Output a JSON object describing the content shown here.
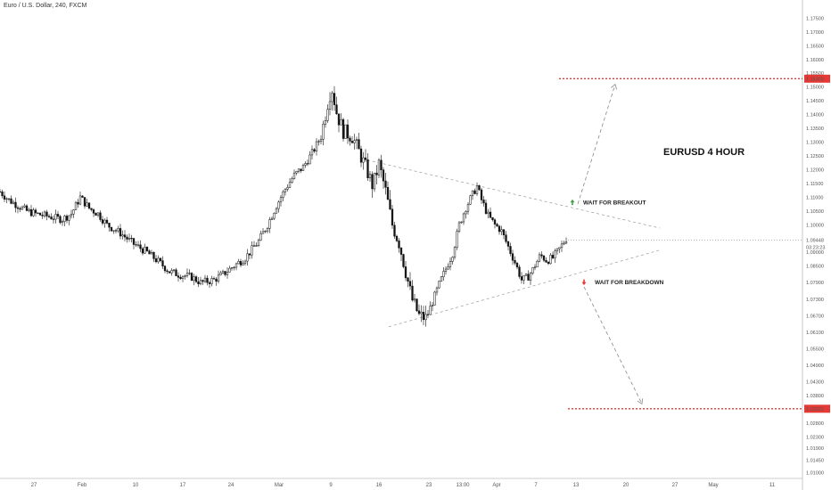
{
  "symbol_title": "Euro / U.S. Dollar, 240, FXCM",
  "chart_data": {
    "type": "candlestick",
    "title": "EURUSD 4 HOUR",
    "ylim": [
      1.006,
      1.179
    ],
    "y_ticks": [
      "1.17500",
      "1.17000",
      "1.16500",
      "1.16000",
      "1.15500",
      "1.15000",
      "1.14500",
      "1.14000",
      "1.13500",
      "1.13000",
      "1.12500",
      "1.12000",
      "1.11500",
      "1.11000",
      "1.10500",
      "1.10000",
      "1.09448",
      "1.09000",
      "1.08500",
      "1.07900",
      "1.07300",
      "1.06700",
      "1.06100",
      "1.05500",
      "1.04900",
      "1.04300",
      "1.03800",
      "1.03322",
      "1.02800",
      "1.02300",
      "1.01900",
      "1.01450",
      "1.01000"
    ],
    "x_ticks": [
      "27",
      "Feb",
      "10",
      "17",
      "24",
      "Mar",
      "9",
      "16",
      "23",
      "13:00",
      "Apr",
      "7",
      "13",
      "20",
      "27",
      "May",
      "11"
    ],
    "current_price": "1.09448",
    "countdown": "03:23:23",
    "levels": [
      {
        "label": "1.15303",
        "value": 1.15303,
        "color": "#e53935"
      },
      {
        "label": "1.03322",
        "value": 1.03322,
        "color": "#e53935"
      }
    ],
    "path": [
      [
        0,
        1.112
      ],
      [
        10,
        1.109
      ],
      [
        20,
        1.107
      ],
      [
        30,
        1.105
      ],
      [
        40,
        1.104
      ],
      [
        55,
        1.103
      ],
      [
        70,
        1.102
      ],
      [
        80,
        1.104
      ],
      [
        90,
        1.11
      ],
      [
        100,
        1.106
      ],
      [
        110,
        1.104
      ],
      [
        120,
        1.1
      ],
      [
        135,
        1.097
      ],
      [
        150,
        1.093
      ],
      [
        165,
        1.09
      ],
      [
        180,
        1.086
      ],
      [
        190,
        1.083
      ],
      [
        200,
        1.082
      ],
      [
        215,
        1.081
      ],
      [
        225,
        1.079
      ],
      [
        240,
        1.08
      ],
      [
        250,
        1.082
      ],
      [
        262,
        1.085
      ],
      [
        275,
        1.088
      ],
      [
        290,
        1.094
      ],
      [
        300,
        1.1
      ],
      [
        310,
        1.107
      ],
      [
        320,
        1.113
      ],
      [
        330,
        1.118
      ],
      [
        340,
        1.121
      ],
      [
        350,
        1.126
      ],
      [
        360,
        1.132
      ],
      [
        368,
        1.145
      ],
      [
        372,
        1.15
      ],
      [
        378,
        1.14
      ],
      [
        385,
        1.134
      ],
      [
        395,
        1.132
      ],
      [
        402,
        1.127
      ],
      [
        410,
        1.121
      ],
      [
        418,
        1.114
      ],
      [
        425,
        1.122
      ],
      [
        432,
        1.113
      ],
      [
        440,
        1.1
      ],
      [
        448,
        1.093
      ],
      [
        455,
        1.083
      ],
      [
        462,
        1.073
      ],
      [
        470,
        1.067
      ],
      [
        478,
        1.066
      ],
      [
        485,
        1.072
      ],
      [
        492,
        1.078
      ],
      [
        500,
        1.084
      ],
      [
        508,
        1.09
      ],
      [
        515,
        1.1
      ],
      [
        522,
        1.106
      ],
      [
        530,
        1.111
      ],
      [
        535,
        1.114
      ],
      [
        540,
        1.109
      ],
      [
        548,
        1.103
      ],
      [
        555,
        1.1
      ],
      [
        562,
        1.098
      ],
      [
        570,
        1.092
      ],
      [
        578,
        1.086
      ],
      [
        585,
        1.08
      ],
      [
        592,
        1.081
      ],
      [
        598,
        1.084
      ],
      [
        606,
        1.089
      ],
      [
        613,
        1.087
      ],
      [
        620,
        1.088
      ],
      [
        627,
        1.091
      ],
      [
        635,
        1.095
      ]
    ],
    "trendlines": [
      {
        "from": [
          412,
          1.1235
        ],
        "to": [
          740,
          1.0988
        ]
      },
      {
        "from": [
          436,
          1.063
        ],
        "to": [
          742,
          1.091
        ]
      }
    ],
    "projections": [
      {
        "from": [
          648,
          1.1075
        ],
        "to": [
          690,
          1.151
        ],
        "arrow": "up"
      },
      {
        "from": [
          655,
          1.0775
        ],
        "to": [
          720,
          1.035
        ],
        "arrow": "down"
      }
    ],
    "annotations": [
      {
        "text": "WAIT FOR BREAKOUT",
        "arrow": "up",
        "color": "#43a047",
        "x": 642,
        "y": 1.1081
      },
      {
        "text": "WAIT FOR BREAKDOWN",
        "arrow": "down",
        "color": "#e53935",
        "x": 655,
        "y": 1.0792
      }
    ]
  }
}
